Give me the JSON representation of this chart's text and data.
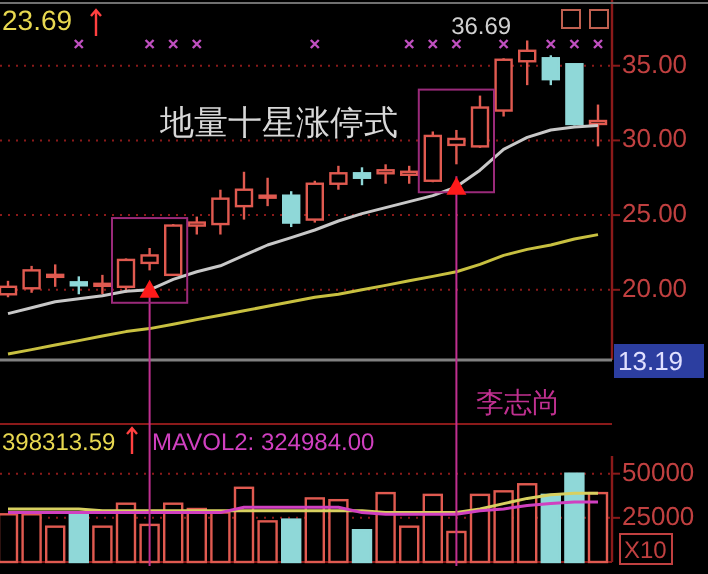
{
  "chart_data": [
    {
      "type": "candlestick",
      "categories": [
        null,
        null,
        null,
        null,
        null,
        null,
        null,
        null,
        null,
        null,
        null,
        null,
        null,
        null,
        null,
        null,
        null,
        null,
        null,
        null,
        null,
        null,
        null,
        null,
        null,
        null
      ],
      "ohlc": [
        [
          19.7,
          20.6,
          19.5,
          20.2
        ],
        [
          20.1,
          21.6,
          19.8,
          21.3
        ],
        [
          20.9,
          21.7,
          20.2,
          21.0
        ],
        [
          20.5,
          20.9,
          19.7,
          20.3
        ],
        [
          20.3,
          21.0,
          19.7,
          20.4
        ],
        [
          20.2,
          22.1,
          19.8,
          22.0
        ],
        [
          21.8,
          22.8,
          21.3,
          22.3
        ],
        [
          21.0,
          24.4,
          21.0,
          24.3
        ],
        [
          24.3,
          24.9,
          23.7,
          24.5
        ],
        [
          24.4,
          26.7,
          23.7,
          26.1
        ],
        [
          25.6,
          27.9,
          24.7,
          26.7
        ],
        [
          26.2,
          27.5,
          25.6,
          26.3
        ],
        [
          26.3,
          26.6,
          24.2,
          24.5
        ],
        [
          24.7,
          27.3,
          24.5,
          27.1
        ],
        [
          27.1,
          28.3,
          26.7,
          27.8
        ],
        [
          27.8,
          28.2,
          27.0,
          27.5
        ],
        [
          27.8,
          28.4,
          27.1,
          28.0
        ],
        [
          27.7,
          28.3,
          27.1,
          27.9
        ],
        [
          27.3,
          30.6,
          27.2,
          30.3
        ],
        [
          29.7,
          30.7,
          28.4,
          30.1
        ],
        [
          29.6,
          33.0,
          29.5,
          32.2
        ],
        [
          32.0,
          35.5,
          31.6,
          35.4
        ],
        [
          35.3,
          36.69,
          33.7,
          36.0
        ],
        [
          35.5,
          35.7,
          33.7,
          34.1
        ],
        [
          35.1,
          35.1,
          31.0,
          31.1
        ],
        [
          31.1,
          32.4,
          29.6,
          31.3
        ]
      ],
      "colors": [
        "#e05a50",
        "#e05a50",
        "#e05a50",
        "#8fd8d8",
        "#e05a50",
        "#e05a50",
        "#e05a50",
        "#e05a50",
        "#e05a50",
        "#e05a50",
        "#e05a50",
        "#e05a50",
        "#8fd8d8",
        "#e05a50",
        "#e05a50",
        "#8fd8d8",
        "#e05a50",
        "#e05a50",
        "#e05a50",
        "#e05a50",
        "#e05a50",
        "#e05a50",
        "#e05a50",
        "#8fd8d8",
        "#8fd8d8",
        "#e05a50"
      ],
      "series": [
        {
          "type": "line",
          "color": "#c8c8c8",
          "values": [
            18.4,
            18.8,
            19.2,
            19.4,
            19.6,
            19.9,
            20.0,
            20.7,
            21.2,
            21.6,
            22.3,
            23.0,
            23.5,
            24.0,
            24.6,
            25.1,
            25.5,
            25.9,
            26.3,
            26.9,
            28.0,
            29.4,
            30.2,
            30.7,
            30.9,
            31.0
          ]
        },
        {
          "type": "line",
          "color": "#c8c040",
          "values": [
            15.7,
            16.0,
            16.3,
            16.6,
            16.9,
            17.2,
            17.4,
            17.7,
            18.0,
            18.3,
            18.6,
            18.9,
            19.2,
            19.5,
            19.7,
            20.0,
            20.3,
            20.6,
            20.9,
            21.2,
            21.7,
            22.3,
            22.7,
            23.0,
            23.4,
            23.7
          ]
        }
      ],
      "ylim": [
        15.3,
        39.4
      ],
      "yticks": [
        {
          "value": 20,
          "label": "20.00"
        },
        {
          "value": 25,
          "label": "25.00"
        },
        {
          "value": 30,
          "label": "30.00"
        },
        {
          "value": 35,
          "label": "35.00"
        }
      ],
      "grid": "y",
      "annotations": [
        "23.69",
        "36.69",
        "地量十星涨停式",
        "李志尚",
        "13.19"
      ],
      "tick_labels": "y"
    },
    {
      "type": "bar",
      "categories": [
        null,
        null,
        null,
        null,
        null,
        null,
        null,
        null,
        null,
        null,
        null,
        null,
        null,
        null,
        null,
        null,
        null,
        null,
        null,
        null,
        null,
        null,
        null,
        null,
        null,
        null
      ],
      "series": [
        {
          "type": "bar",
          "colors": [
            "#e05a50",
            "#e05a50",
            "#e05a50",
            "#8fd8d8",
            "#e05a50",
            "#e05a50",
            "#e05a50",
            "#e05a50",
            "#e05a50",
            "#e05a50",
            "#e05a50",
            "#e05a50",
            "#8fd8d8",
            "#e05a50",
            "#e05a50",
            "#8fd8d8",
            "#e05a50",
            "#e05a50",
            "#e05a50",
            "#e05a50",
            "#e05a50",
            "#e05a50",
            "#e05a50",
            "#8fd8d8",
            "#8fd8d8",
            "#e05a50"
          ],
          "values": [
            27000,
            27000,
            20000,
            28000,
            20000,
            33000,
            21000,
            33000,
            30000,
            28000,
            42000,
            23000,
            24000,
            36000,
            35000,
            18000,
            39000,
            20000,
            38000,
            17000,
            38000,
            40000,
            44000,
            38000,
            50000,
            39000
          ]
        },
        {
          "type": "line",
          "color": "#d8d060",
          "values": [
            30000,
            30000,
            30000,
            30000,
            29000,
            29000,
            29000,
            29000,
            29000,
            29000,
            29000,
            29000,
            29000,
            29000,
            29000,
            29000,
            28000,
            28000,
            28000,
            28000,
            30000,
            33000,
            36000,
            38000,
            39000,
            39000
          ]
        },
        {
          "type": "line",
          "color": "#d040c0",
          "values": [
            28000,
            28000,
            28000,
            28000,
            28000,
            28000,
            28000,
            28000,
            28000,
            28000,
            31000,
            31000,
            31000,
            31000,
            31000,
            28000,
            27000,
            27000,
            27000,
            27000,
            29000,
            30000,
            32000,
            33000,
            34000,
            34000
          ]
        }
      ],
      "ylim": [
        0,
        60000
      ],
      "yticks": [
        25000,
        50000
      ],
      "grid": "y",
      "annotations": [
        "398313.59",
        "MAVOL2: 324984.00",
        "X10"
      ],
      "tick_labels": "y"
    }
  ]
}
